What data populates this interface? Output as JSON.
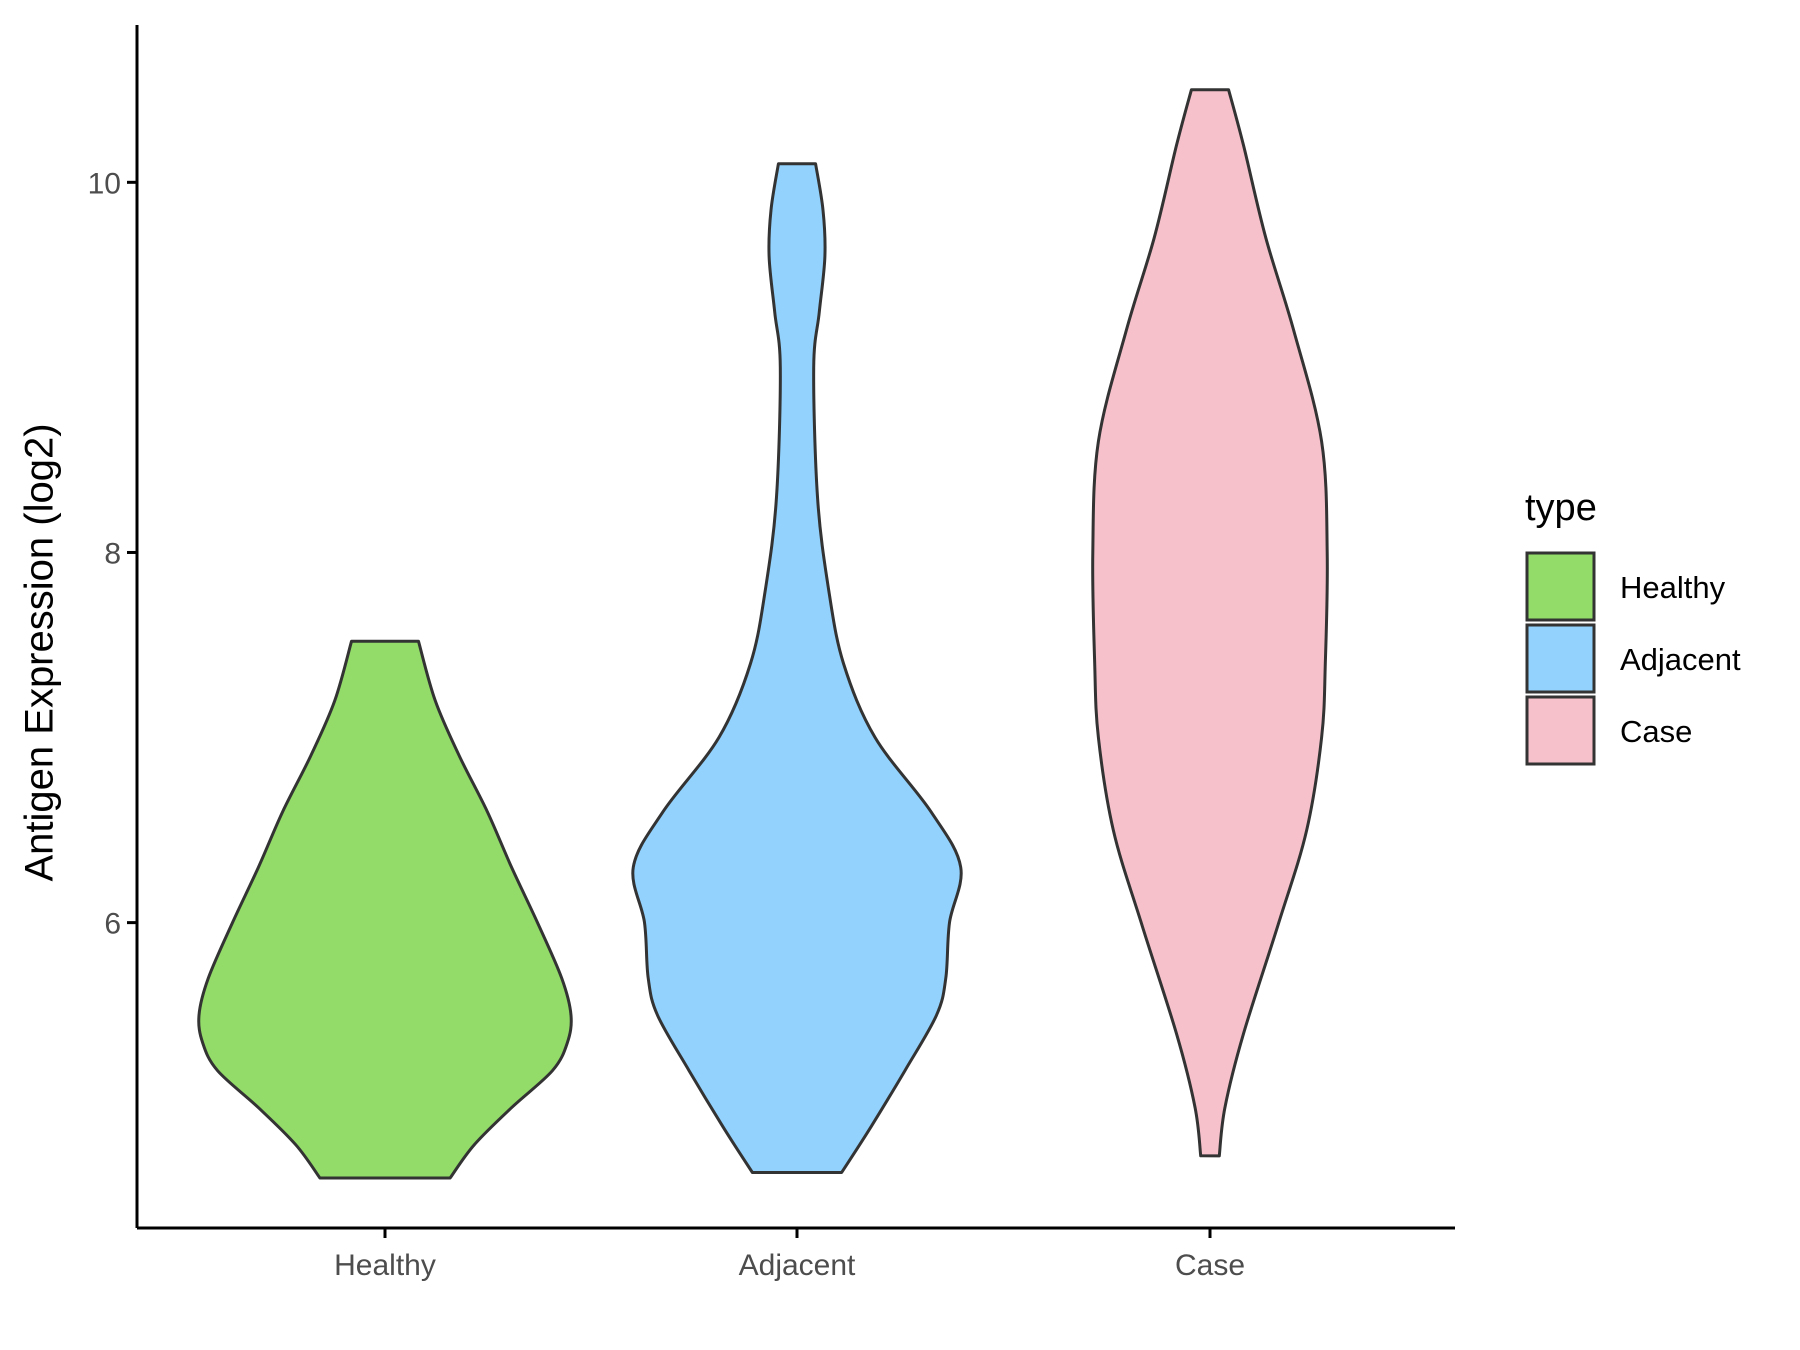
{
  "chart_data": {
    "type": "violin",
    "title": "",
    "xlabel": "",
    "ylabel": "Antigen Expression (log2)",
    "ylim": [
      4.35,
      10.85
    ],
    "yticks": [
      6,
      8,
      10
    ],
    "grid": false,
    "legend": {
      "title": "type",
      "position": "right",
      "entries": [
        {
          "label": "Healthy",
          "color": "#93dc69"
        },
        {
          "label": "Adjacent",
          "color": "#92d2fd"
        },
        {
          "label": "Case",
          "color": "#f7c1cb"
        }
      ]
    },
    "categories": [
      "Healthy",
      "Adjacent",
      "Case"
    ],
    "series": [
      {
        "category": "Healthy",
        "color": "#93dc69",
        "min": 4.62,
        "max": 7.52,
        "density_profile": [
          [
            4.62,
            0.35
          ],
          [
            4.8,
            0.48
          ],
          [
            5.0,
            0.68
          ],
          [
            5.2,
            0.9
          ],
          [
            5.35,
            0.98
          ],
          [
            5.5,
            1.0
          ],
          [
            5.7,
            0.95
          ],
          [
            6.0,
            0.82
          ],
          [
            6.3,
            0.68
          ],
          [
            6.6,
            0.55
          ],
          [
            6.9,
            0.4
          ],
          [
            7.2,
            0.27
          ],
          [
            7.52,
            0.18
          ]
        ]
      },
      {
        "category": "Adjacent",
        "color": "#92d2fd",
        "min": 4.65,
        "max": 10.1,
        "density_profile": [
          [
            4.65,
            0.24
          ],
          [
            4.9,
            0.4
          ],
          [
            5.2,
            0.58
          ],
          [
            5.5,
            0.75
          ],
          [
            5.7,
            0.8
          ],
          [
            6.0,
            0.82
          ],
          [
            6.3,
            0.88
          ],
          [
            6.6,
            0.72
          ],
          [
            7.0,
            0.42
          ],
          [
            7.4,
            0.25
          ],
          [
            7.8,
            0.17
          ],
          [
            8.3,
            0.11
          ],
          [
            9.0,
            0.09
          ],
          [
            9.3,
            0.12
          ],
          [
            9.6,
            0.15
          ],
          [
            9.85,
            0.14
          ],
          [
            10.1,
            0.1
          ]
        ]
      },
      {
        "category": "Case",
        "color": "#f7c1cb",
        "min": 4.74,
        "max": 10.5,
        "density_profile": [
          [
            4.74,
            0.05
          ],
          [
            5.0,
            0.08
          ],
          [
            5.4,
            0.18
          ],
          [
            6.0,
            0.37
          ],
          [
            6.5,
            0.52
          ],
          [
            7.0,
            0.6
          ],
          [
            7.4,
            0.62
          ],
          [
            8.0,
            0.63
          ],
          [
            8.6,
            0.6
          ],
          [
            9.2,
            0.45
          ],
          [
            9.7,
            0.3
          ],
          [
            10.2,
            0.18
          ],
          [
            10.5,
            0.1
          ]
        ]
      }
    ]
  }
}
